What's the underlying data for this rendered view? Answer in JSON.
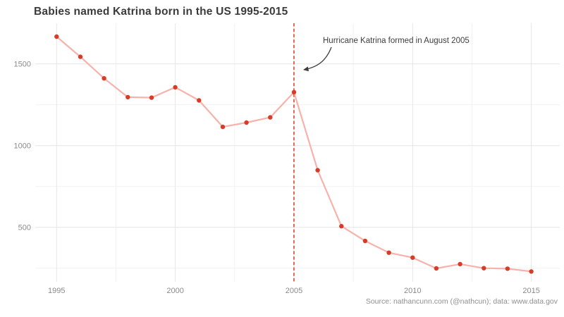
{
  "title": "Babies named Katrina born in the US 1995-2015",
  "annotation": {
    "text": "Hurricane Katrina formed in August 2005",
    "event_year": 2005
  },
  "source": "Source: nathancunn.com (@nathcun); data: www.data.gov",
  "colors": {
    "point": "#d63c28",
    "series_line": "#f6b2ab",
    "event_line": "#e0432d",
    "grid_major": "#e6e6e6",
    "grid_minor": "#f2f2f2",
    "title_text": "#3b3b3b",
    "tick_text": "#8a8a8a",
    "annotation_text": "#3d3d3d",
    "source_text": "#8f8f8f",
    "arrow": "#3d3d3d",
    "background": "#ffffff"
  },
  "chart_data": {
    "type": "line",
    "title": "Babies named Katrina born in the US 1995-2015",
    "xlabel": "",
    "ylabel": "",
    "x": [
      1995,
      1996,
      1997,
      1998,
      1999,
      2000,
      2001,
      2002,
      2003,
      2004,
      2005,
      2006,
      2007,
      2008,
      2009,
      2010,
      2011,
      2012,
      2013,
      2014,
      2015
    ],
    "values": [
      1667,
      1544,
      1412,
      1297,
      1294,
      1357,
      1277,
      1115,
      1141,
      1173,
      1327,
      850,
      507,
      417,
      345,
      315,
      249,
      275,
      250,
      247,
      230
    ],
    "x_ticks": [
      1995,
      2000,
      2005,
      2010,
      2015
    ],
    "x_minor_ticks": [
      1997.5,
      2002.5,
      2007.5,
      2012.5
    ],
    "y_ticks": [
      500,
      1000,
      1500
    ],
    "y_minor_ticks": [
      250,
      750,
      1250
    ],
    "xlim": [
      1994.1,
      2016.2
    ],
    "ylim": [
      167,
      1749
    ],
    "grid": true,
    "legend": false,
    "vline_x": 2005,
    "vline_label": "Hurricane Katrina formed in August 2005"
  }
}
